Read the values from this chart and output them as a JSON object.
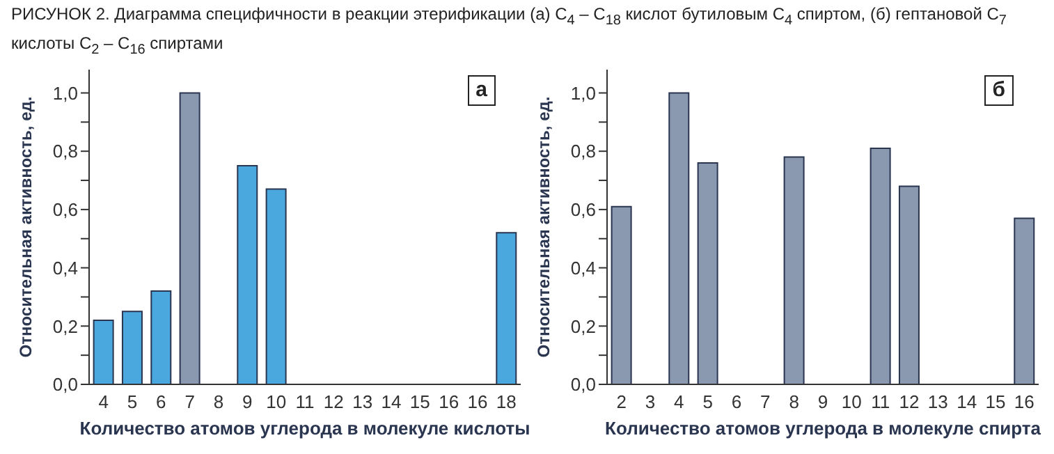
{
  "chart_data": [
    {
      "type": "bar",
      "title": "РИСУНОК 2. Диаграмма специфичности в реакции этерификации (а) C$_{4}$ – C$_{18}$ кислот бутиловым C$_{4}$ спиртом, (б) гептановой C$_{7}$ кислоты C$_{2}$ – C$_{16}$ спиртами",
      "xlabel": "Количество атомов углерода в молекуле кислоты",
      "ylabel": "Относительная активность, ед.",
      "annotations": [
        "а"
      ],
      "categories": [
        "4",
        "5",
        "6",
        "7",
        "8",
        "9",
        "10",
        "11",
        "12",
        "13",
        "14",
        "15",
        "16",
        "16",
        "18"
      ],
      "values": [
        0.22,
        0.25,
        0.32,
        1.0,
        null,
        0.75,
        0.67,
        null,
        null,
        null,
        null,
        null,
        null,
        null,
        0.52
      ],
      "colors": [
        "#4aa8df",
        "#4aa8df",
        "#4aa8df",
        "#8a98b0",
        "#4aa8df",
        "#4aa8df",
        "#4aa8df",
        "#4aa8df",
        "#4aa8df",
        "#4aa8df",
        "#4aa8df",
        "#4aa8df",
        "#4aa8df",
        "#4aa8df",
        "#4aa8df"
      ],
      "ylim": [
        0,
        1.08
      ],
      "yticks": [
        {
          "value": 0,
          "label": "0,0"
        },
        {
          "value": 0.1,
          "label": null
        },
        {
          "value": 0.2,
          "label": "0,2"
        },
        {
          "value": 0.3,
          "label": null
        },
        {
          "value": 0.4,
          "label": "0,4"
        },
        {
          "value": 0.5,
          "label": null
        },
        {
          "value": 0.6,
          "label": "0,6"
        },
        {
          "value": 0.7,
          "label": null
        },
        {
          "value": 0.8,
          "label": "0,8"
        },
        {
          "value": 0.9,
          "label": null
        },
        {
          "value": 1.0,
          "label": "1,0"
        }
      ],
      "grid": false
    },
    {
      "type": "bar",
      "xlabel": "Количество атомов углерода в молекуле спирта",
      "ylabel": "Относительная активность, ед.",
      "annotations": [
        "б"
      ],
      "categories": [
        "2",
        "3",
        "4",
        "5",
        "6",
        "7",
        "8",
        "9",
        "10",
        "11",
        "12",
        "13",
        "14",
        "15",
        "16"
      ],
      "values": [
        0.61,
        null,
        1.0,
        0.76,
        null,
        null,
        0.78,
        null,
        null,
        0.81,
        0.68,
        null,
        null,
        null,
        0.57
      ],
      "color": "#8a98b0",
      "ylim": [
        0,
        1.08
      ],
      "yticks": [
        {
          "value": 0,
          "label": "0,0"
        },
        {
          "value": 0.1,
          "label": null
        },
        {
          "value": 0.2,
          "label": "0,2"
        },
        {
          "value": 0.3,
          "label": null
        },
        {
          "value": 0.4,
          "label": "0,4"
        },
        {
          "value": 0.5,
          "label": null
        },
        {
          "value": 0.6,
          "label": "0,6"
        },
        {
          "value": 0.7,
          "label": null
        },
        {
          "value": 0.8,
          "label": "0,8"
        },
        {
          "value": 0.9,
          "label": null
        },
        {
          "value": 1.0,
          "label": "1,0"
        }
      ],
      "grid": false
    }
  ]
}
